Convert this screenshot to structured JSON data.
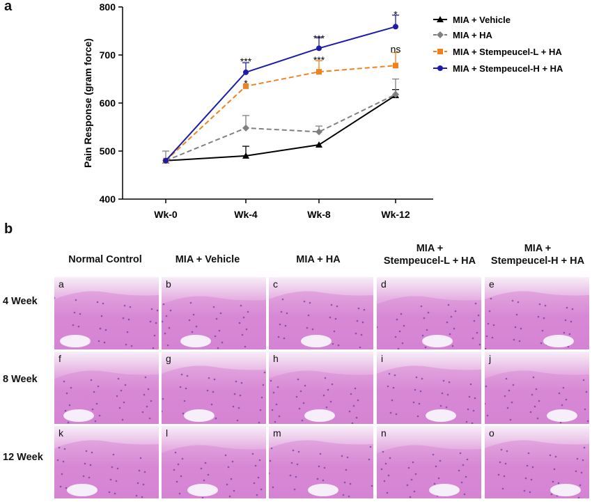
{
  "panel_labels": {
    "a": "a",
    "b": "b"
  },
  "chart_data": {
    "type": "line",
    "ylabel": "Pain Response (gram force)",
    "xlabel": "",
    "categories": [
      "Wk-0",
      "Wk-4",
      "Wk-8",
      "Wk-12"
    ],
    "ylim": [
      400,
      800
    ],
    "yticks": [
      400,
      500,
      600,
      700,
      800
    ],
    "legend_position": "top-right",
    "series": [
      {
        "name": "MIA + Vehicle",
        "color": "#000000",
        "marker": "triangle",
        "dash": "solid",
        "values": [
          480,
          490,
          513,
          616
        ],
        "errors": [
          0,
          20,
          0,
          12
        ]
      },
      {
        "name": "MIA + HA",
        "color": "#808080",
        "marker": "diamond",
        "dash": "dashed",
        "values": [
          480,
          548,
          540,
          618
        ],
        "errors": [
          20,
          26,
          12,
          32
        ]
      },
      {
        "name": "MIA + Stempeucel-L + HA",
        "color": "#f0821e",
        "marker": "square",
        "dash": "dashed",
        "values": [
          480,
          635,
          665,
          678
        ],
        "errors": [
          0,
          0,
          23,
          27
        ]
      },
      {
        "name": "MIA + Stempeucel-H + HA",
        "color": "#1c1ca8",
        "marker": "circle",
        "dash": "solid",
        "values": [
          480,
          664,
          714,
          759
        ],
        "errors": [
          0,
          20,
          22,
          24
        ]
      }
    ],
    "annotations": [
      {
        "text": "***",
        "x": "Wk-4",
        "y": 687
      },
      {
        "text": "*",
        "x": "Wk-4",
        "y": 641
      },
      {
        "text": "***",
        "x": "Wk-8",
        "y": 735
      },
      {
        "text": "***",
        "x": "Wk-8",
        "y": 690
      },
      {
        "text": "*",
        "x": "Wk-12",
        "y": 785
      },
      {
        "text": "ns",
        "x": "Wk-12",
        "y": 712
      }
    ]
  },
  "histology": {
    "columns": [
      "Normal Control",
      "MIA + Vehicle",
      "MIA + HA",
      "MIA +\nStempeucel-L + HA",
      "MIA +\nStempeucel-H + HA"
    ],
    "rows": [
      "4 Week",
      "8 Week",
      "12 Week"
    ],
    "tiles": [
      "a",
      "b",
      "c",
      "d",
      "e",
      "f",
      "g",
      "h",
      "i",
      "j",
      "k",
      "l",
      "m",
      "n",
      "o"
    ]
  }
}
